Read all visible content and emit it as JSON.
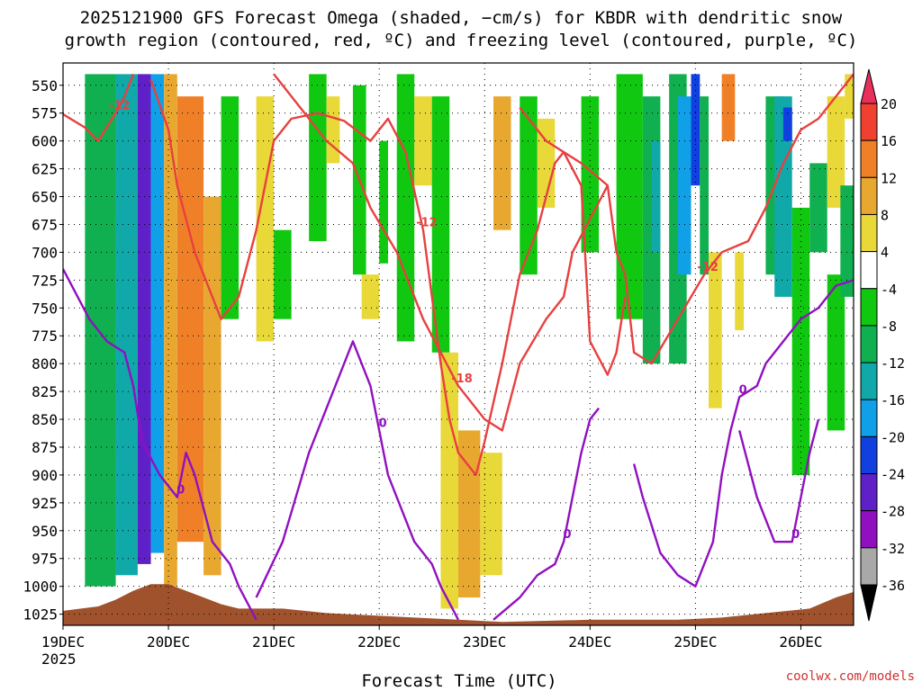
{
  "chart_data": {
    "type": "heatmap",
    "title_lines": [
      "2025121900 GFS Forecast Omega (shaded, −cm/s) for KBDR with dendritic snow",
      "growth region (contoured, red, ºC) and freezing level (contoured, purple, ºC)"
    ],
    "xlabel": "Forecast Time (UTC)",
    "credit": "coolwx.com/models",
    "x_ticks": [
      "19DEC",
      "20DEC",
      "21DEC",
      "22DEC",
      "23DEC",
      "24DEC",
      "25DEC",
      "26DEC"
    ],
    "x_year": "2025",
    "x_range_hours": [
      0,
      180
    ],
    "y_ticks": [
      "550",
      "575",
      "600",
      "625",
      "650",
      "675",
      "700",
      "725",
      "750",
      "775",
      "800",
      "825",
      "850",
      "875",
      "900",
      "925",
      "950",
      "975",
      "1000",
      "1025"
    ],
    "y_range_hpa": [
      530,
      1035
    ],
    "grid": true,
    "colorbar": {
      "labels": [
        "20",
        "16",
        "12",
        "8",
        "4",
        "-4",
        "-8",
        "-12",
        "-16",
        "-20",
        "-24",
        "-28",
        "-32",
        "-36"
      ],
      "colors": [
        "#e8305a",
        "#f04030",
        "#f08028",
        "#e8a830",
        "#e8d838",
        "#ffffff",
        "#10c810",
        "#10b050",
        "#10a8a8",
        "#10a0e8",
        "#1040e0",
        "#6020c8",
        "#9010c0",
        "#a8a8a8",
        "#000000"
      ]
    },
    "omega_bands": [
      {
        "x0": 5,
        "x1": 12,
        "p0": 540,
        "p1": 1000,
        "val": -10
      },
      {
        "x0": 12,
        "x1": 17,
        "p0": 540,
        "p1": 990,
        "val": -14
      },
      {
        "x0": 17,
        "x1": 20,
        "p0": 540,
        "p1": 980,
        "val": -26
      },
      {
        "x0": 20,
        "x1": 23,
        "p0": 540,
        "p1": 970,
        "val": -16
      },
      {
        "x0": 23,
        "x1": 26,
        "p0": 540,
        "p1": 1000,
        "val": 10
      },
      {
        "x0": 26,
        "x1": 32,
        "p0": 560,
        "p1": 960,
        "val": 14
      },
      {
        "x0": 32,
        "x1": 36,
        "p0": 650,
        "p1": 990,
        "val": 8
      },
      {
        "x0": 36,
        "x1": 40,
        "p0": 560,
        "p1": 760,
        "val": -6
      },
      {
        "x0": 44,
        "x1": 48,
        "p0": 560,
        "p1": 780,
        "val": 6
      },
      {
        "x0": 48,
        "x1": 52,
        "p0": 680,
        "p1": 760,
        "val": -6
      },
      {
        "x0": 56,
        "x1": 60,
        "p0": 540,
        "p1": 690,
        "val": -6
      },
      {
        "x0": 60,
        "x1": 63,
        "p0": 560,
        "p1": 620,
        "val": 6
      },
      {
        "x0": 66,
        "x1": 69,
        "p0": 550,
        "p1": 720,
        "val": -6
      },
      {
        "x0": 68,
        "x1": 72,
        "p0": 720,
        "p1": 760,
        "val": 6
      },
      {
        "x0": 72,
        "x1": 74,
        "p0": 600,
        "p1": 710,
        "val": -6
      },
      {
        "x0": 76,
        "x1": 80,
        "p0": 540,
        "p1": 780,
        "val": -6
      },
      {
        "x0": 80,
        "x1": 84,
        "p0": 560,
        "p1": 640,
        "val": 6
      },
      {
        "x0": 84,
        "x1": 88,
        "p0": 560,
        "p1": 790,
        "val": -6
      },
      {
        "x0": 86,
        "x1": 90,
        "p0": 790,
        "p1": 1020,
        "val": 6
      },
      {
        "x0": 90,
        "x1": 95,
        "p0": 860,
        "p1": 1010,
        "val": 10
      },
      {
        "x0": 95,
        "x1": 100,
        "p0": 880,
        "p1": 990,
        "val": 6
      },
      {
        "x0": 98,
        "x1": 102,
        "p0": 560,
        "p1": 680,
        "val": 8
      },
      {
        "x0": 104,
        "x1": 108,
        "p0": 560,
        "p1": 720,
        "val": -6
      },
      {
        "x0": 108,
        "x1": 112,
        "p0": 580,
        "p1": 660,
        "val": 6
      },
      {
        "x0": 118,
        "x1": 122,
        "p0": 560,
        "p1": 700,
        "val": -6
      },
      {
        "x0": 126,
        "x1": 132,
        "p0": 540,
        "p1": 760,
        "val": -6
      },
      {
        "x0": 132,
        "x1": 136,
        "p0": 560,
        "p1": 800,
        "val": -10
      },
      {
        "x0": 134,
        "x1": 136,
        "p0": 600,
        "p1": 700,
        "val": -14
      },
      {
        "x0": 138,
        "x1": 142,
        "p0": 540,
        "p1": 800,
        "val": -8
      },
      {
        "x0": 140,
        "x1": 143,
        "p0": 560,
        "p1": 720,
        "val": -18
      },
      {
        "x0": 143,
        "x1": 145,
        "p0": 540,
        "p1": 640,
        "val": -22
      },
      {
        "x0": 145,
        "x1": 147,
        "p0": 560,
        "p1": 720,
        "val": -10
      },
      {
        "x0": 147,
        "x1": 150,
        "p0": 700,
        "p1": 840,
        "val": 6
      },
      {
        "x0": 150,
        "x1": 153,
        "p0": 540,
        "p1": 600,
        "val": 14
      },
      {
        "x0": 153,
        "x1": 155,
        "p0": 700,
        "p1": 770,
        "val": 6
      },
      {
        "x0": 160,
        "x1": 164,
        "p0": 560,
        "p1": 720,
        "val": -8
      },
      {
        "x0": 162,
        "x1": 166,
        "p0": 560,
        "p1": 740,
        "val": -12
      },
      {
        "x0": 164,
        "x1": 166,
        "p0": 570,
        "p1": 600,
        "val": -20
      },
      {
        "x0": 166,
        "x1": 170,
        "p0": 660,
        "p1": 900,
        "val": -6
      },
      {
        "x0": 170,
        "x1": 174,
        "p0": 620,
        "p1": 700,
        "val": -8
      },
      {
        "x0": 174,
        "x1": 178,
        "p0": 560,
        "p1": 660,
        "val": 6
      },
      {
        "x0": 174,
        "x1": 178,
        "p0": 720,
        "p1": 860,
        "val": -6
      },
      {
        "x0": 177,
        "x1": 180,
        "p0": 640,
        "p1": 740,
        "val": -10
      },
      {
        "x0": 178,
        "x1": 180,
        "p0": 540,
        "p1": 580,
        "val": 6
      }
    ],
    "dgz_isotherms": [
      {
        "label": "-12",
        "points": [
          [
            0,
            576
          ],
          [
            5,
            588
          ],
          [
            8,
            600
          ],
          [
            12,
            575
          ],
          [
            14,
            560
          ],
          [
            16,
            540
          ]
        ]
      },
      {
        "label": "-12",
        "points": [
          [
            20,
            545
          ],
          [
            24,
            590
          ],
          [
            26,
            640
          ],
          [
            30,
            700
          ],
          [
            32,
            720
          ],
          [
            34,
            740
          ],
          [
            36,
            760
          ],
          [
            40,
            740
          ],
          [
            44,
            680
          ],
          [
            48,
            600
          ],
          [
            52,
            580
          ],
          [
            58,
            575
          ],
          [
            64,
            582
          ],
          [
            70,
            600
          ],
          [
            74,
            580
          ],
          [
            78,
            610
          ],
          [
            82,
            680
          ],
          [
            84,
            740
          ],
          [
            86,
            800
          ],
          [
            88,
            850
          ],
          [
            90,
            880
          ],
          [
            94,
            900
          ],
          [
            96,
            870
          ],
          [
            100,
            800
          ],
          [
            104,
            720
          ],
          [
            108,
            680
          ],
          [
            112,
            620
          ],
          [
            114,
            610
          ],
          [
            118,
            640
          ],
          [
            120,
            780
          ],
          [
            124,
            810
          ],
          [
            126,
            790
          ],
          [
            128,
            740
          ]
        ]
      },
      {
        "label": "-18",
        "points": [
          [
            48,
            540
          ],
          [
            54,
            570
          ],
          [
            60,
            600
          ],
          [
            66,
            620
          ],
          [
            70,
            660
          ],
          [
            76,
            700
          ],
          [
            78,
            720
          ],
          [
            82,
            760
          ],
          [
            86,
            790
          ],
          [
            90,
            820
          ],
          [
            96,
            850
          ],
          [
            100,
            860
          ],
          [
            104,
            800
          ],
          [
            110,
            760
          ],
          [
            114,
            740
          ],
          [
            116,
            700
          ],
          [
            120,
            670
          ],
          [
            124,
            640
          ]
        ]
      },
      {
        "label": "-12",
        "points": [
          [
            104,
            570
          ],
          [
            110,
            600
          ],
          [
            118,
            620
          ],
          [
            124,
            640
          ],
          [
            126,
            700
          ],
          [
            128,
            720
          ],
          [
            130,
            790
          ],
          [
            134,
            800
          ],
          [
            140,
            760
          ],
          [
            146,
            720
          ],
          [
            150,
            700
          ],
          [
            156,
            690
          ],
          [
            160,
            660
          ],
          [
            164,
            620
          ],
          [
            168,
            590
          ],
          [
            172,
            580
          ],
          [
            176,
            560
          ],
          [
            180,
            540
          ]
        ]
      }
    ],
    "freezing_level": [
      {
        "label": "0",
        "points": [
          [
            0,
            715
          ],
          [
            6,
            760
          ],
          [
            10,
            780
          ],
          [
            14,
            790
          ],
          [
            16,
            820
          ],
          [
            18,
            870
          ],
          [
            22,
            900
          ],
          [
            26,
            920
          ],
          [
            28,
            880
          ],
          [
            30,
            900
          ],
          [
            34,
            960
          ],
          [
            38,
            980
          ],
          [
            40,
            1000
          ],
          [
            44,
            1030
          ]
        ]
      },
      {
        "label": "0",
        "points": [
          [
            44,
            1010
          ],
          [
            50,
            960
          ],
          [
            56,
            880
          ],
          [
            60,
            840
          ],
          [
            64,
            800
          ],
          [
            66,
            780
          ],
          [
            70,
            820
          ],
          [
            72,
            860
          ],
          [
            74,
            900
          ],
          [
            78,
            940
          ],
          [
            80,
            960
          ],
          [
            84,
            980
          ],
          [
            86,
            1000
          ],
          [
            90,
            1030
          ]
        ]
      },
      {
        "label": "0",
        "points": [
          [
            98,
            1030
          ],
          [
            104,
            1010
          ],
          [
            108,
            990
          ],
          [
            112,
            980
          ],
          [
            114,
            960
          ],
          [
            116,
            920
          ],
          [
            118,
            880
          ],
          [
            120,
            850
          ],
          [
            122,
            840
          ]
        ]
      },
      {
        "label": "0",
        "points": [
          [
            130,
            890
          ],
          [
            132,
            920
          ],
          [
            136,
            970
          ],
          [
            140,
            990
          ],
          [
            144,
            1000
          ],
          [
            148,
            960
          ],
          [
            150,
            900
          ],
          [
            152,
            860
          ],
          [
            154,
            830
          ],
          [
            158,
            820
          ],
          [
            160,
            800
          ],
          [
            164,
            780
          ],
          [
            168,
            760
          ],
          [
            172,
            750
          ],
          [
            176,
            730
          ],
          [
            180,
            725
          ]
        ]
      },
      {
        "label": "0",
        "points": [
          [
            154,
            860
          ],
          [
            158,
            920
          ],
          [
            162,
            960
          ],
          [
            166,
            960
          ],
          [
            168,
            920
          ],
          [
            170,
            880
          ],
          [
            172,
            850
          ]
        ]
      }
    ],
    "surface": {
      "color": "#a0522d",
      "points": [
        [
          0,
          1022
        ],
        [
          8,
          1018
        ],
        [
          12,
          1012
        ],
        [
          16,
          1004
        ],
        [
          20,
          998
        ],
        [
          24,
          998
        ],
        [
          28,
          1004
        ],
        [
          32,
          1010
        ],
        [
          36,
          1016
        ],
        [
          40,
          1020
        ],
        [
          50,
          1020
        ],
        [
          60,
          1024
        ],
        [
          70,
          1026
        ],
        [
          80,
          1028
        ],
        [
          90,
          1030
        ],
        [
          100,
          1032
        ],
        [
          110,
          1031
        ],
        [
          120,
          1030
        ],
        [
          130,
          1030
        ],
        [
          140,
          1030
        ],
        [
          150,
          1028
        ],
        [
          160,
          1024
        ],
        [
          170,
          1020
        ],
        [
          176,
          1010
        ],
        [
          180,
          1005
        ]
      ]
    }
  }
}
